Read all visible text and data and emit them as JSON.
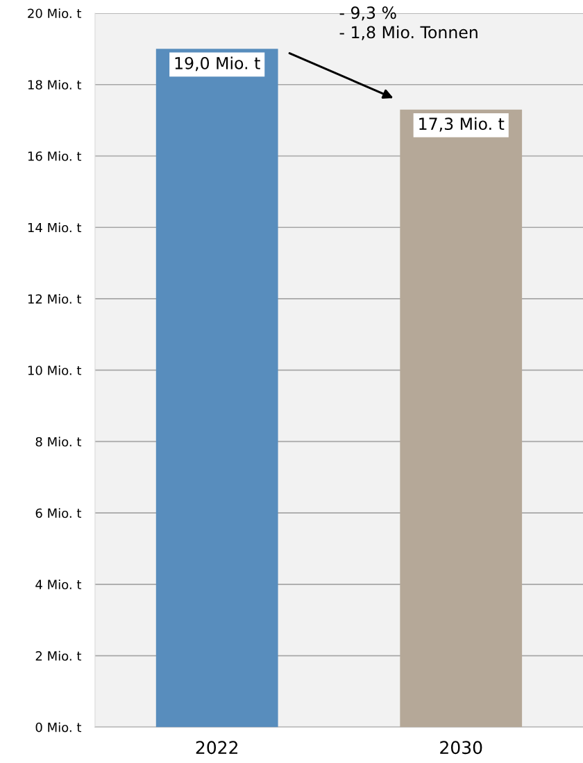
{
  "chart_data": {
    "type": "bar",
    "categories": [
      "2022",
      "2030"
    ],
    "values": [
      19.0,
      17.3
    ],
    "colors": [
      "#588dbd",
      "#b5a898"
    ],
    "value_labels": [
      "19,0 Mio. t",
      "17,3 Mio. t"
    ],
    "ylim": [
      0,
      20
    ],
    "yticks": [
      {
        "value": 0,
        "label": "0 Mio. t"
      },
      {
        "value": 2,
        "label": "2 Mio. t"
      },
      {
        "value": 4,
        "label": "4 Mio. t"
      },
      {
        "value": 6,
        "label": "6 Mio. t"
      },
      {
        "value": 8,
        "label": "8 Mio. t"
      },
      {
        "value": 10,
        "label": "10 Mio. t"
      },
      {
        "value": 12,
        "label": "12 Mio. t"
      },
      {
        "value": 14,
        "label": "14 Mio. t"
      },
      {
        "value": 16,
        "label": "16 Mio. t"
      },
      {
        "value": 18,
        "label": "18 Mio. t"
      },
      {
        "value": 20,
        "label": "20 Mio. t"
      }
    ],
    "grid": "y",
    "annotations": [
      "- 9,3 %\n- 1,8 Mio. Tonnen"
    ]
  }
}
